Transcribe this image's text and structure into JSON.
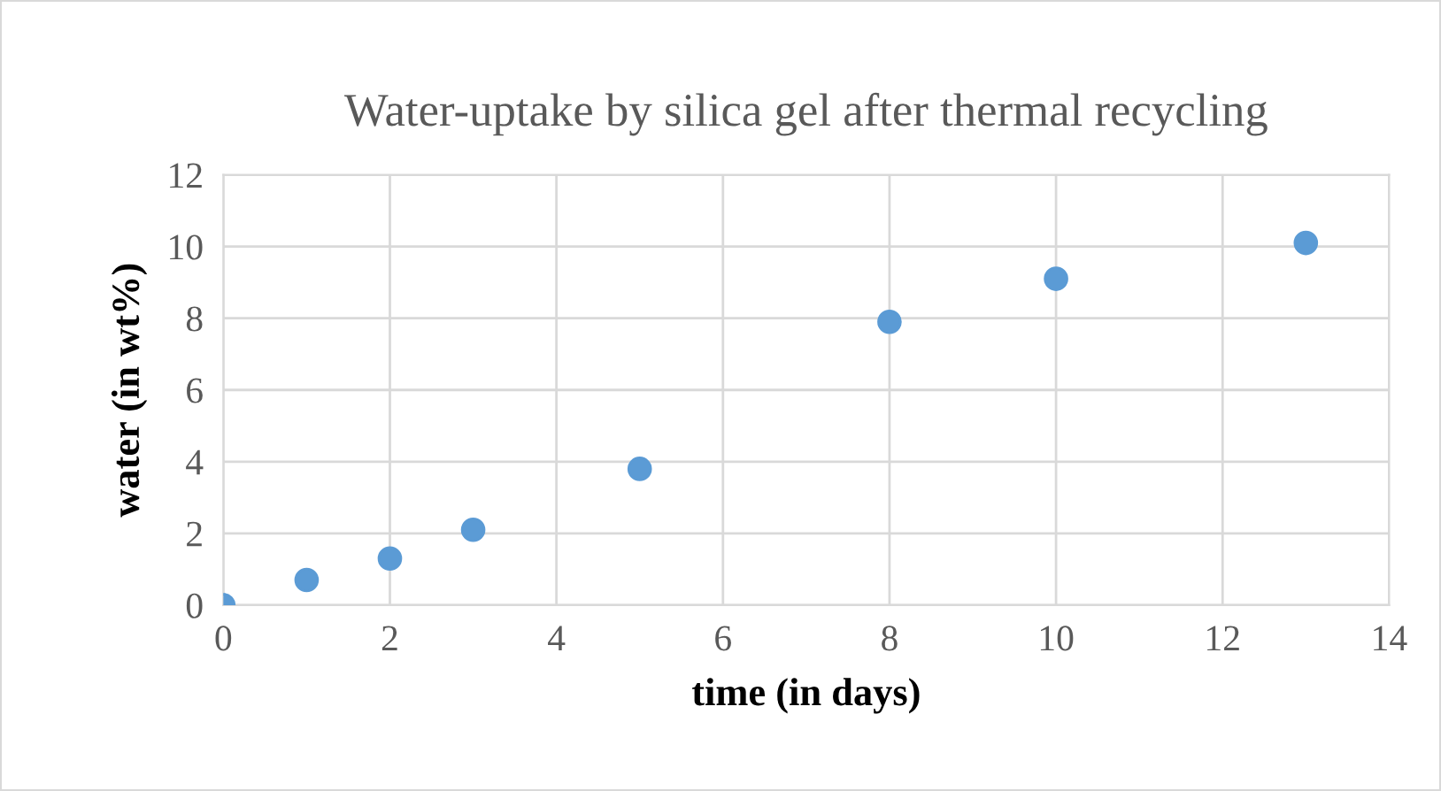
{
  "chart_data": {
    "type": "scatter",
    "title": "Water-uptake by silica gel after thermal recycling",
    "xlabel": "time (in days)",
    "ylabel": "water (in wt%)",
    "x": [
      0,
      1,
      2,
      3,
      5,
      8,
      10,
      13
    ],
    "series": [
      {
        "color": "#5b9bd5",
        "values": [
          0,
          0.7,
          1.3,
          2.1,
          3.8,
          7.9,
          9.1,
          10.1
        ]
      }
    ],
    "xlim": [
      0,
      14
    ],
    "xticks": [
      0,
      2,
      4,
      6,
      8,
      10,
      12,
      14
    ],
    "ylim": [
      0,
      12
    ],
    "yticks": [
      0,
      2,
      4,
      6,
      8,
      10,
      12
    ],
    "grid": true,
    "marker": "circle"
  }
}
